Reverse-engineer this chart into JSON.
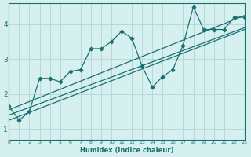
{
  "xlabel": "Humidex (Indice chaleur)",
  "bg_color": "#d6f0f0",
  "grid_color": "#b8d8d8",
  "line_color": "#1a7070",
  "xlim": [
    0,
    23
  ],
  "ylim": [
    0.7,
    4.6
  ],
  "yticks": [
    1,
    2,
    3,
    4
  ],
  "xticks": [
    0,
    1,
    2,
    3,
    4,
    5,
    6,
    7,
    8,
    9,
    10,
    11,
    12,
    13,
    14,
    15,
    16,
    17,
    18,
    19,
    20,
    21,
    22,
    23
  ],
  "scatter_x": [
    0,
    1,
    2,
    3,
    4,
    5,
    6,
    7,
    8,
    9,
    10,
    11,
    12,
    13,
    14,
    15,
    16,
    17,
    18,
    19,
    20,
    21,
    22,
    23
  ],
  "scatter_y": [
    1.65,
    1.25,
    1.5,
    2.45,
    2.45,
    2.35,
    2.65,
    2.7,
    3.3,
    3.3,
    3.5,
    3.8,
    3.6,
    2.8,
    2.2,
    2.5,
    2.7,
    3.4,
    4.5,
    3.85,
    3.85,
    3.85,
    4.2,
    4.2
  ],
  "line1_x": [
    0,
    23
  ],
  "line1_y": [
    1.55,
    4.25
  ],
  "line2_x": [
    0,
    23
  ],
  "line2_y": [
    1.4,
    3.9
  ],
  "line3_x": [
    0,
    23
  ],
  "line3_y": [
    1.25,
    3.85
  ]
}
